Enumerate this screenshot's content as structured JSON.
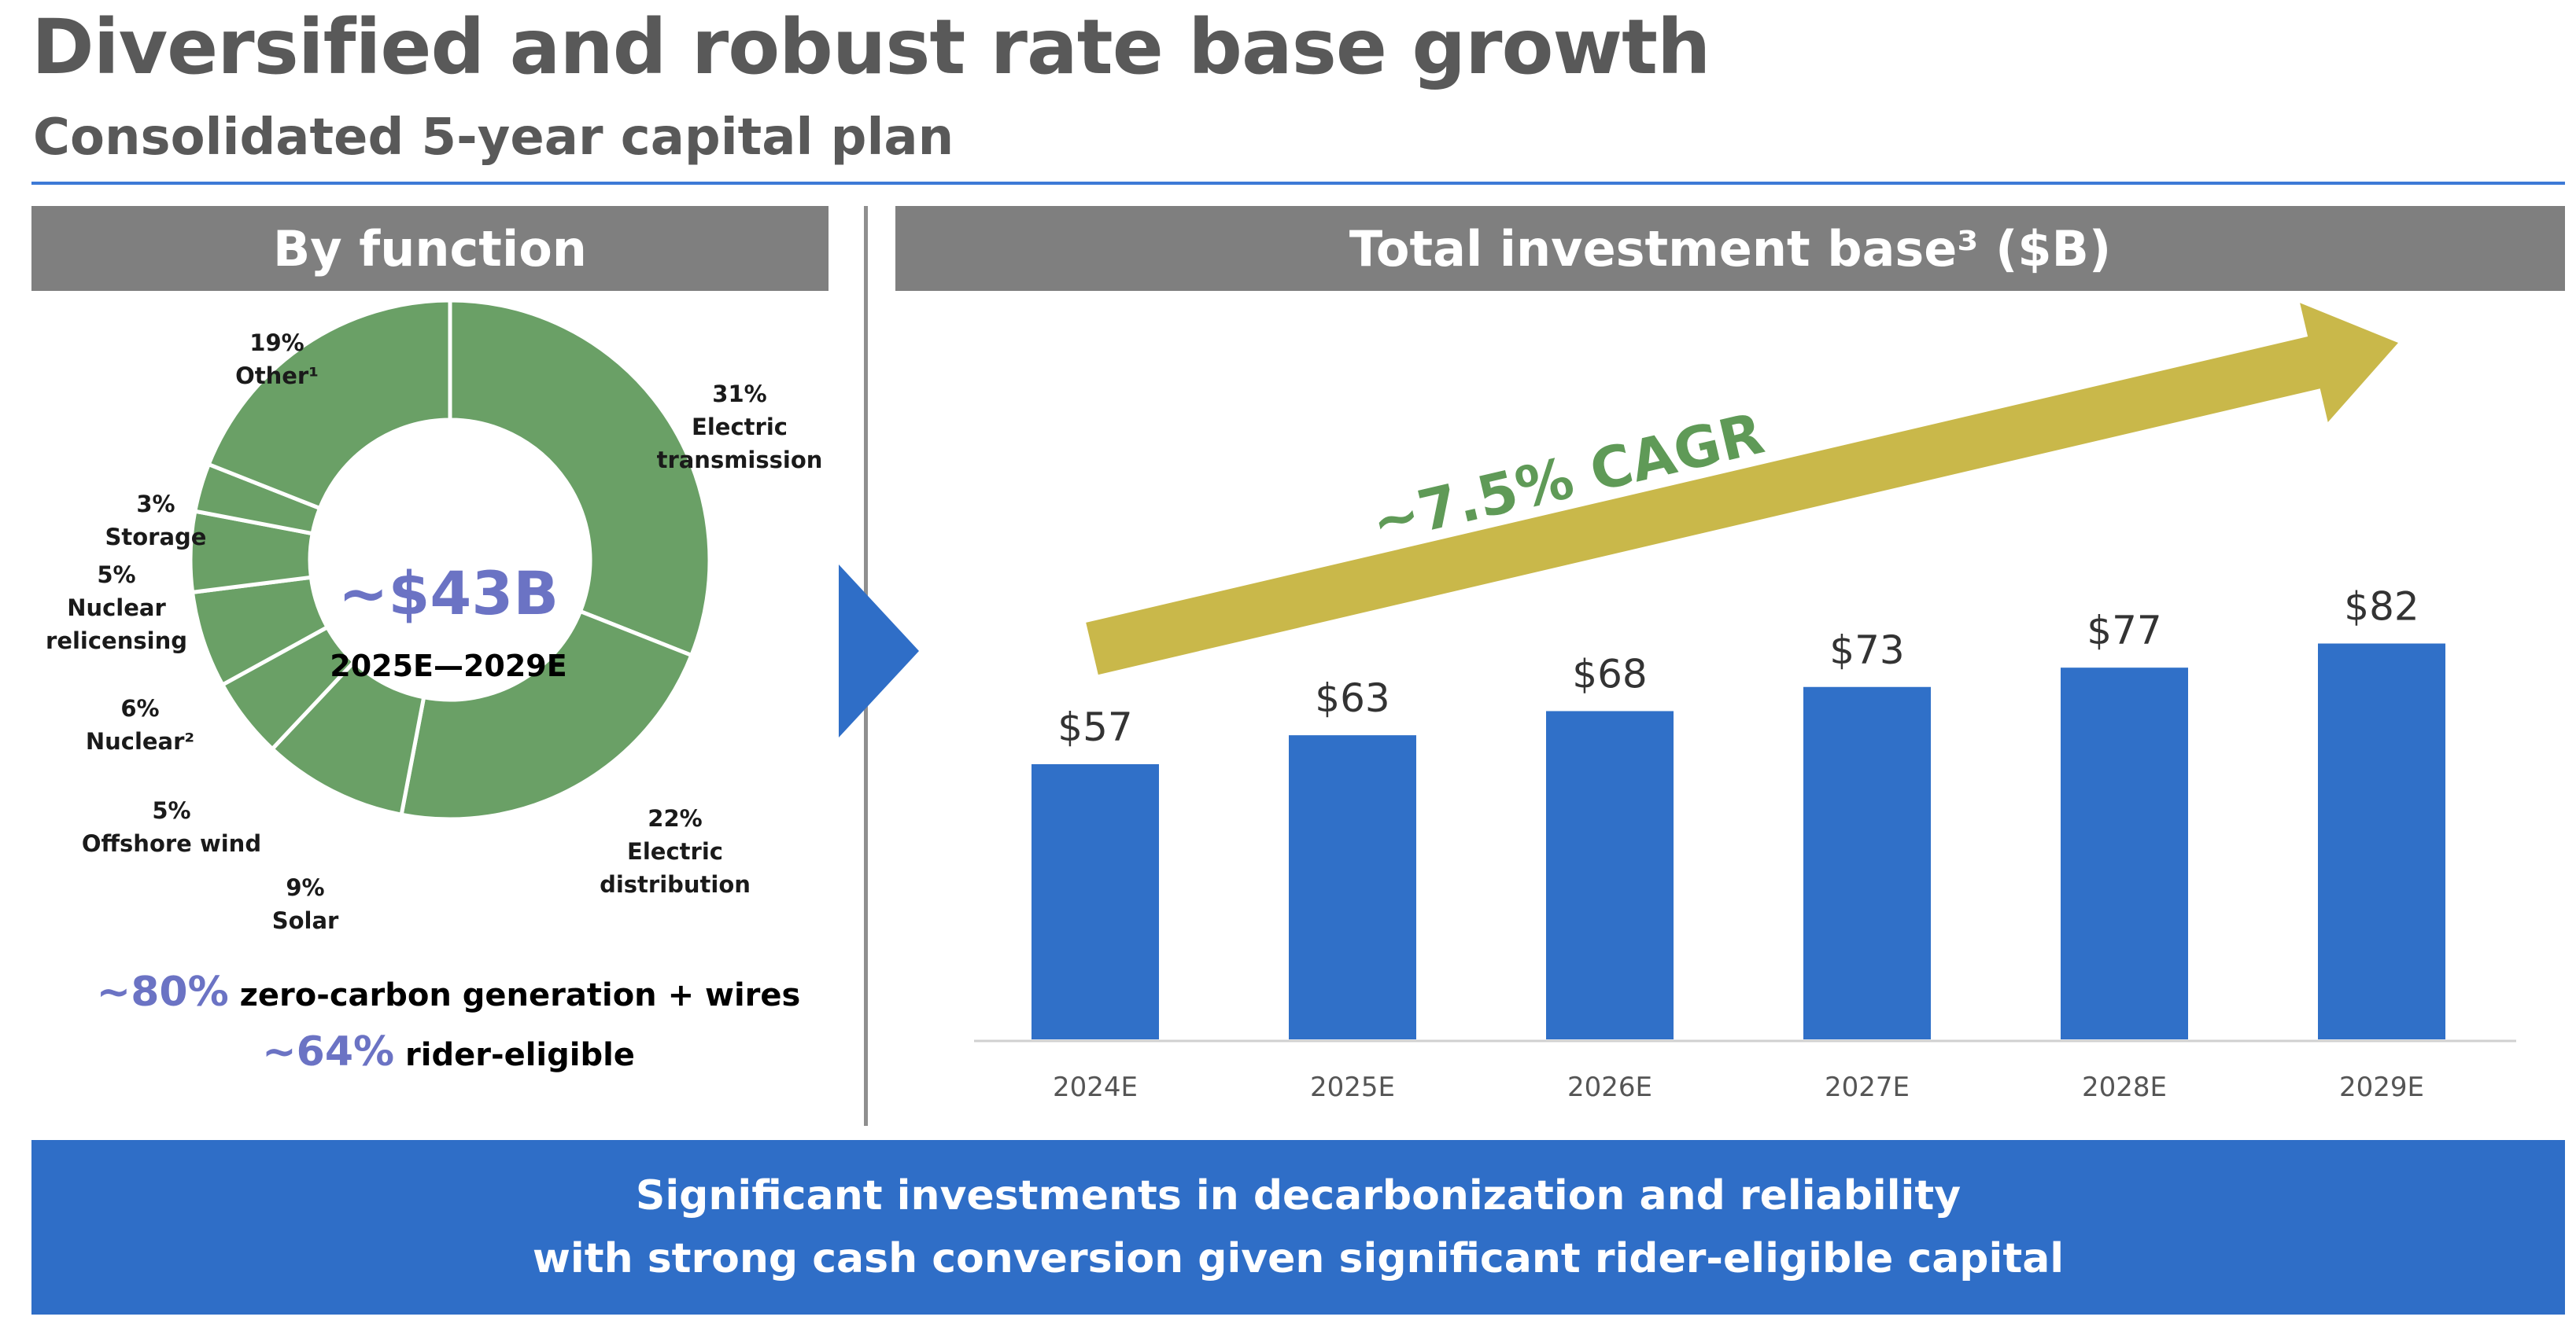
{
  "header": {
    "title": "Diversified and robust rate base growth",
    "subtitle": "Consolidated 5-year capital plan"
  },
  "left_panel": {
    "heading": "By function",
    "center_value": "~$43B",
    "center_sub": "2025E—2029E",
    "stats": [
      {
        "pct": "~80%",
        "text": " zero-carbon generation + wires"
      },
      {
        "pct": "~64%",
        "text": " rider-eligible"
      }
    ]
  },
  "right_panel": {
    "heading": "Total investment base³ ($B)",
    "cagr_label": "~7.5% CAGR"
  },
  "footer": {
    "line1": "Significant investments in decarbonization and reliability",
    "line2": "with strong cash conversion given significant rider-eligible capital"
  },
  "colors": {
    "donut_green": "#6aa066",
    "bar_blue": "#3070c8",
    "cagr_arrow": "#c9b84a",
    "cagr_text": "#5f9a57",
    "accent_purple": "#6b73c4"
  },
  "chart_data": [
    {
      "type": "pie",
      "style": "donut",
      "center_text": "~$43B",
      "center_subtext": "2025E—2029E",
      "slices": [
        {
          "pct_label": "31%",
          "label": "Electric transmission",
          "lines": [
            "31%",
            "Electric",
            "transmission"
          ],
          "value": 31
        },
        {
          "pct_label": "22%",
          "label": "Electric distribution",
          "lines": [
            "22%",
            "Electric",
            "distribution"
          ],
          "value": 22
        },
        {
          "pct_label": "9%",
          "label": "Solar",
          "lines": [
            "9%",
            "Solar"
          ],
          "value": 9
        },
        {
          "pct_label": "5%",
          "label": "Offshore wind",
          "lines": [
            "5%",
            "Offshore wind"
          ],
          "value": 5
        },
        {
          "pct_label": "6%",
          "label": "Nuclear²",
          "lines": [
            "6%",
            "Nuclear²"
          ],
          "value": 6
        },
        {
          "pct_label": "5%",
          "label": "Nuclear relicensing",
          "lines": [
            "5%",
            "Nuclear",
            "relicensing"
          ],
          "value": 5
        },
        {
          "pct_label": "3%",
          "label": "Storage",
          "lines": [
            "3%",
            "Storage"
          ],
          "value": 3
        },
        {
          "pct_label": "19%",
          "label": "Other¹",
          "lines": [
            "19%",
            "Other¹"
          ],
          "value": 19
        }
      ]
    },
    {
      "type": "bar",
      "title": "Total investment base³ ($B)",
      "categories": [
        "2024E",
        "2025E",
        "2026E",
        "2027E",
        "2028E",
        "2029E"
      ],
      "values": [
        57,
        63,
        68,
        73,
        77,
        82
      ],
      "value_labels": [
        "$57",
        "$63",
        "$68",
        "$73",
        "$77",
        "$82"
      ],
      "ylim": [
        0,
        100
      ],
      "grid": false,
      "annotation": "~7.5% CAGR"
    }
  ]
}
